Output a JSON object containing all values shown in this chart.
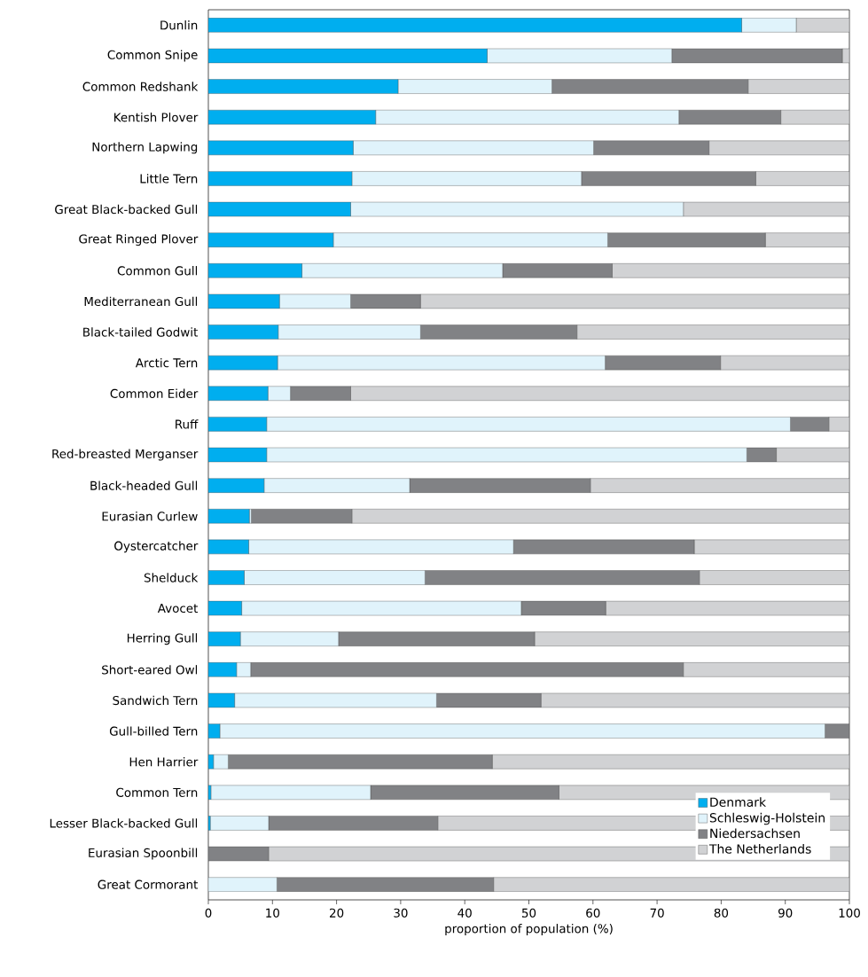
{
  "chart_data": {
    "type": "bar",
    "orientation": "horizontal",
    "stacked": true,
    "xlabel": "proportion of population (%)",
    "categories": [
      "Dunlin",
      "Common Snipe",
      "Common Redshank",
      "Kentish Plover",
      "Northern Lapwing",
      "Little Tern",
      "Great Black-backed Gull",
      "Great Ringed Plover",
      "Common Gull",
      "Mediterranean Gull",
      "Black-tailed Godwit",
      "Arctic Tern",
      "Common Eider",
      "Ruff",
      "Red-breasted Merganser",
      "Black-headed Gull",
      "Eurasian Curlew",
      "Oystercatcher",
      "Shelduck",
      "Avocet",
      "Herring Gull",
      "Short-eared Owl",
      "Sandwich Tern",
      "Gull-billed Tern",
      "Hen Harrier",
      "Common Tern",
      "Lesser Black-backed Gull",
      "Eurasian Spoonbill",
      "Great Cormorant"
    ],
    "series": [
      {
        "name": "Denmark",
        "color": "#00aeef",
        "values": [
          83.2,
          43.5,
          29.6,
          26.1,
          22.6,
          22.4,
          22.2,
          19.5,
          14.6,
          11.1,
          10.9,
          10.8,
          9.3,
          9.1,
          9.1,
          8.7,
          6.4,
          6.3,
          5.6,
          5.2,
          5.0,
          4.4,
          4.1,
          1.8,
          0.8,
          0.4,
          0.3,
          0,
          0
        ]
      },
      {
        "name": "Schleswig-Holstein",
        "color": "#e0f3fb",
        "values": [
          8.5,
          28.8,
          24.0,
          47.3,
          37.5,
          35.8,
          51.9,
          42.8,
          31.3,
          11.1,
          22.2,
          51.1,
          3.5,
          81.7,
          74.9,
          22.7,
          0.3,
          41.3,
          28.2,
          43.6,
          15.3,
          2.2,
          31.5,
          94.4,
          2.3,
          24.9,
          9.1,
          0,
          10.7
        ]
      },
      {
        "name": "Niedersachsen",
        "color": "#818285",
        "values": [
          0,
          26.6,
          30.6,
          15.9,
          18.0,
          27.2,
          0,
          24.6,
          17.1,
          10.9,
          24.4,
          18.0,
          9.4,
          6.0,
          4.6,
          28.2,
          15.7,
          28.2,
          42.8,
          13.2,
          30.6,
          67.5,
          16.3,
          3.8,
          41.2,
          29.4,
          26.4,
          9.4,
          33.8
        ]
      },
      {
        "name": "The Netherlands",
        "color": "#d1d2d4",
        "values": [
          8.3,
          1.1,
          15.8,
          10.7,
          21.9,
          14.6,
          25.9,
          13.1,
          37.0,
          66.9,
          42.5,
          20.1,
          77.8,
          3.2,
          11.4,
          40.4,
          77.6,
          24.2,
          23.4,
          38.0,
          49.1,
          25.9,
          48.1,
          0,
          55.7,
          45.3,
          64.2,
          90.6,
          55.5
        ]
      }
    ],
    "xlim": [
      0,
      100
    ],
    "xticks": [
      0,
      10,
      20,
      30,
      40,
      50,
      60,
      70,
      80,
      90,
      100
    ],
    "grid": false,
    "legend": "bottom right"
  }
}
